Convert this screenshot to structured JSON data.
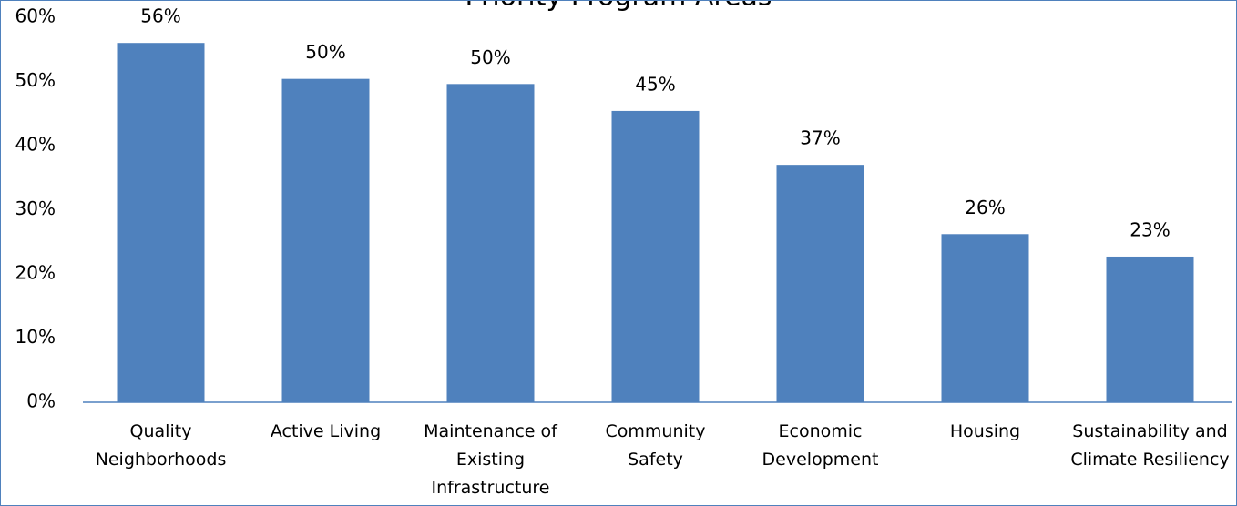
{
  "chart_data": {
    "type": "bar",
    "title": "Priority Program Areas",
    "categories": [
      "Quality Neighborhoods",
      "Active Living",
      "Maintenance of Existing Infrastructure",
      "Community Safety",
      "Economic Development",
      "Housing",
      "Sustainability and Climate Resiliency"
    ],
    "values": [
      56,
      50.4,
      49.6,
      45.4,
      37,
      26.2,
      22.7
    ],
    "value_labels": [
      "56%",
      "50%",
      "50%",
      "45%",
      "37%",
      "26%",
      "23%"
    ],
    "color": "#4f81bd",
    "ylim": [
      0,
      60
    ],
    "yticks": [
      {
        "value": 0,
        "label": "0%"
      },
      {
        "value": 10,
        "label": "10%"
      },
      {
        "value": 20,
        "label": "20%"
      },
      {
        "value": 30,
        "label": "30%"
      },
      {
        "value": 40,
        "label": "40%"
      },
      {
        "value": 50,
        "label": "50%"
      },
      {
        "value": 60,
        "label": "60%"
      }
    ],
    "grid": false
  }
}
